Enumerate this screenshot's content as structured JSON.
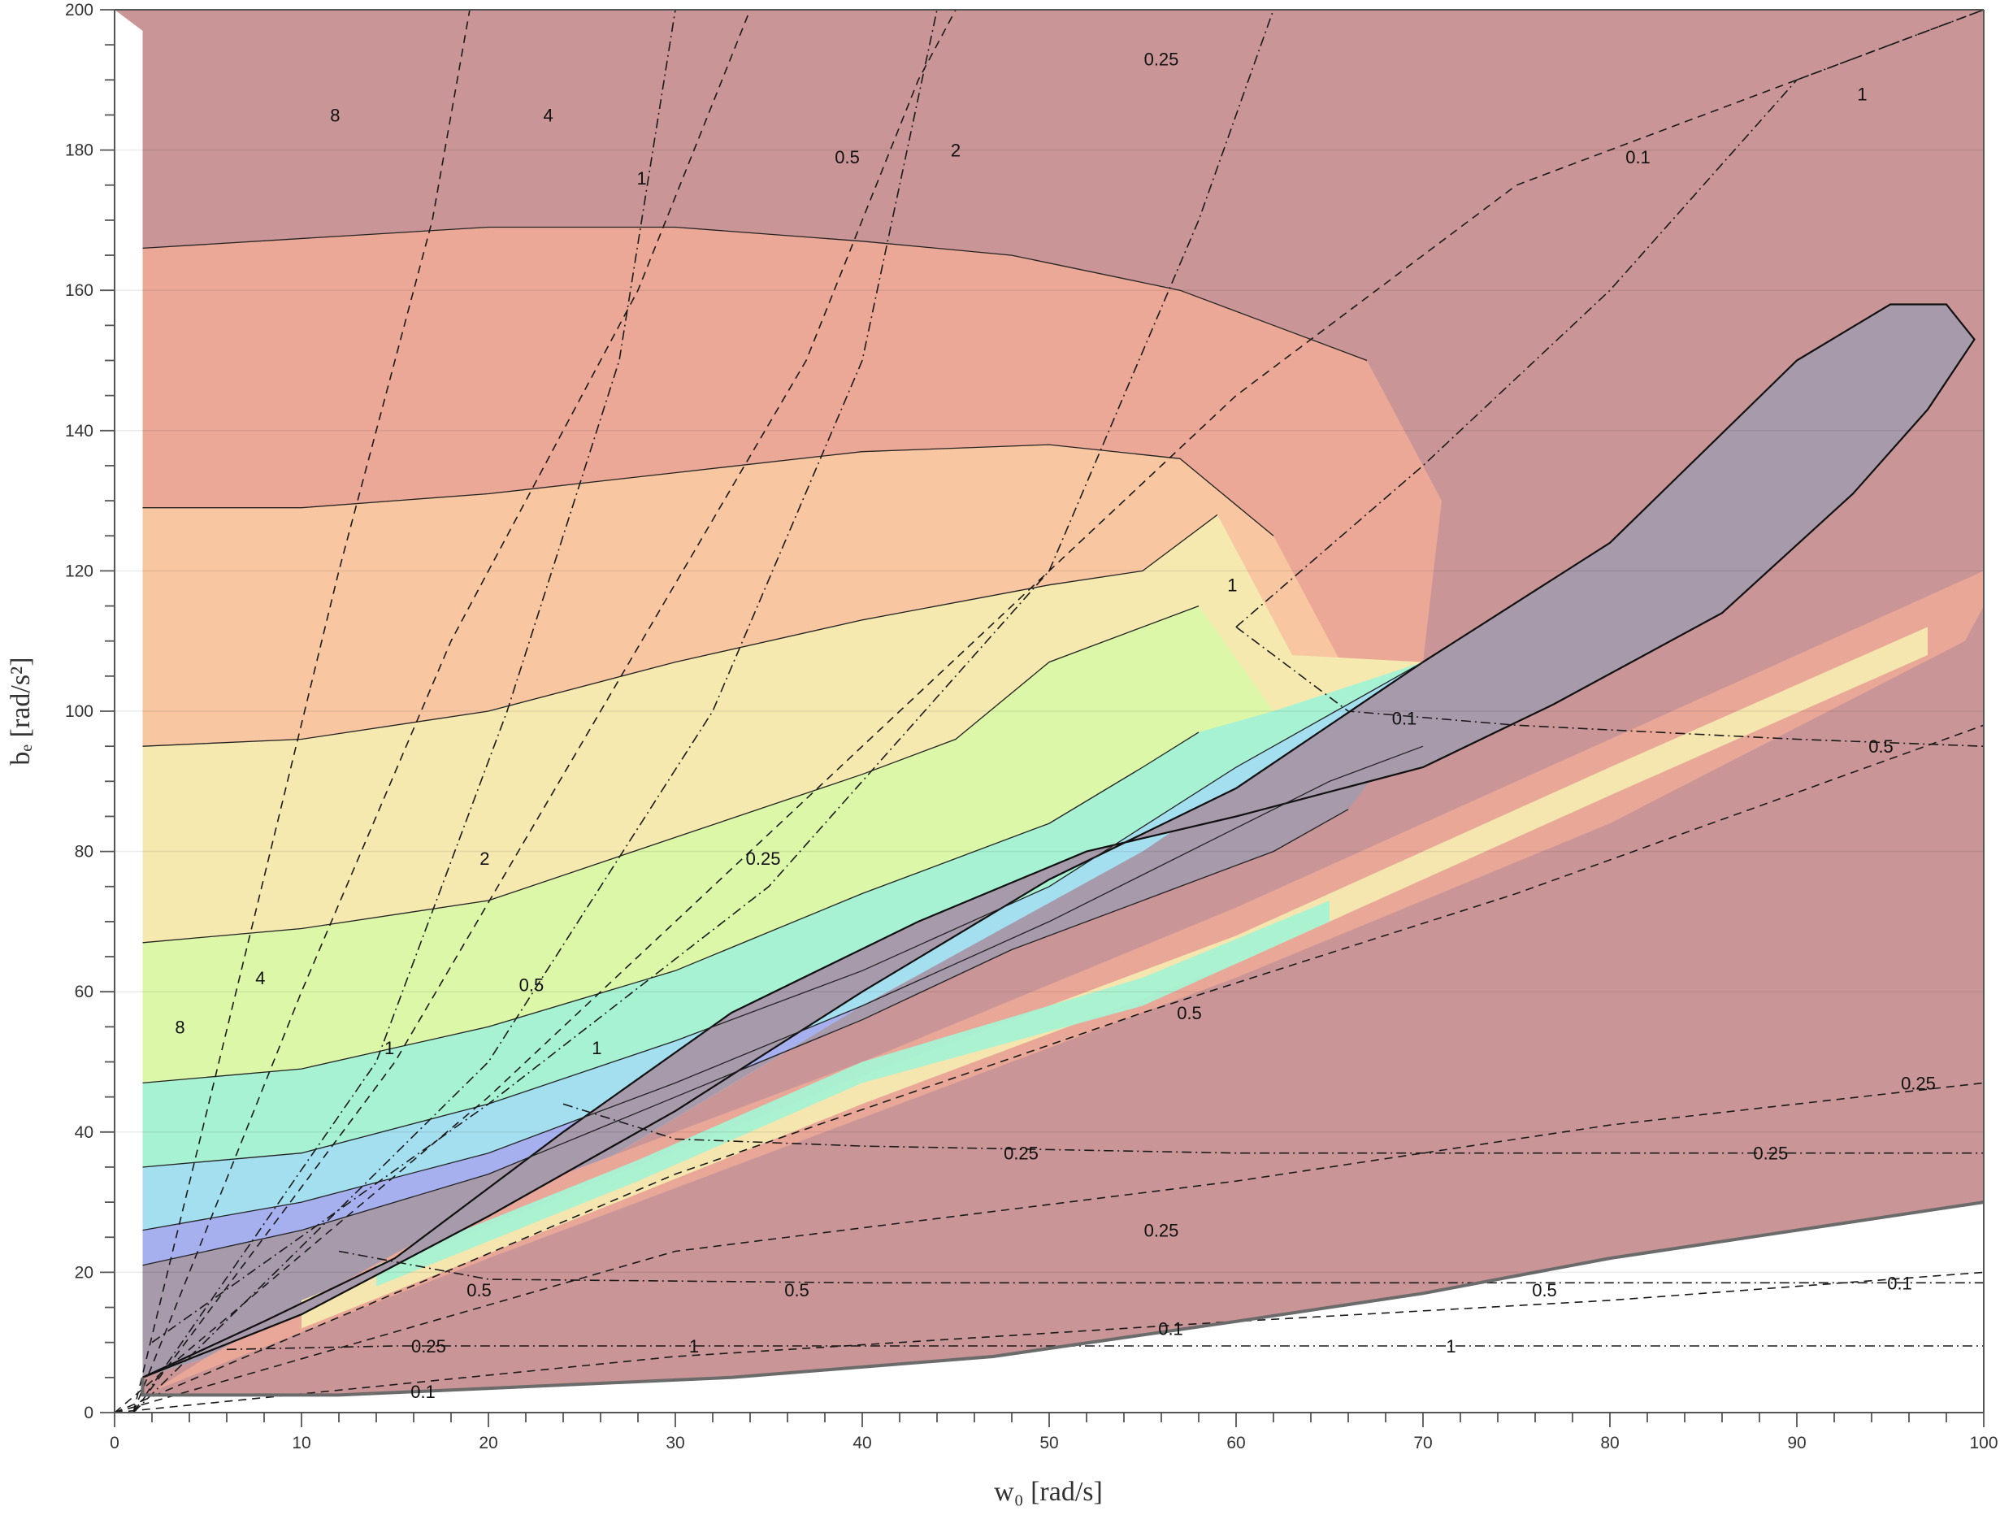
{
  "chart_data": {
    "type": "contour",
    "title": "",
    "xlabel": "w₀ [rad/s]",
    "ylabel": "bₑ [rad/s²]",
    "xlim": [
      0,
      100
    ],
    "ylim": [
      0,
      200
    ],
    "x_ticks": [
      "0",
      "10",
      "20",
      "30",
      "40",
      "50",
      "60",
      "70",
      "80",
      "90",
      "100"
    ],
    "y_ticks": [
      "0",
      "20",
      "40",
      "60",
      "80",
      "100",
      "120",
      "140",
      "160",
      "180",
      "200"
    ],
    "grid": true,
    "colors": {
      "background_region": "#c99596",
      "band_0": "#eba897",
      "band_1": "#f8c6a1",
      "band_2": "#f5e9b0",
      "band_3": "#dcf7a8",
      "band_4": "#a6f2d2",
      "band_5": "#a4dff0",
      "band_6": "#a7b0ee",
      "band_7": "#a69aab",
      "boundary": "#6b6b6b"
    },
    "filled_bands": [
      {
        "upper_boundary": [
          [
            1.5,
            166
          ],
          [
            20,
            169
          ],
          [
            30,
            169
          ],
          [
            40,
            167
          ],
          [
            48,
            165
          ],
          [
            57,
            160
          ],
          [
            62,
            155
          ],
          [
            67,
            150
          ]
        ]
      },
      {
        "upper_boundary": [
          [
            1.5,
            129
          ],
          [
            10,
            129
          ],
          [
            20,
            131
          ],
          [
            30,
            134
          ],
          [
            40,
            137
          ],
          [
            50,
            138
          ],
          [
            57,
            136
          ],
          [
            62,
            125
          ]
        ]
      },
      {
        "upper_boundary": [
          [
            1.5,
            95
          ],
          [
            10,
            96
          ],
          [
            20,
            100
          ],
          [
            30,
            107
          ],
          [
            40,
            113
          ],
          [
            50,
            118
          ],
          [
            55,
            120
          ],
          [
            59,
            128
          ]
        ]
      },
      {
        "upper_boundary": [
          [
            1.5,
            67
          ],
          [
            10,
            69
          ],
          [
            20,
            73
          ],
          [
            30,
            82
          ],
          [
            40,
            91
          ],
          [
            45,
            96
          ],
          [
            50,
            107
          ],
          [
            58,
            115
          ]
        ]
      },
      {
        "upper_boundary": [
          [
            1.5,
            47
          ],
          [
            10,
            49
          ],
          [
            20,
            55
          ],
          [
            30,
            63
          ],
          [
            40,
            74
          ],
          [
            50,
            84
          ],
          [
            55,
            92
          ],
          [
            58,
            97
          ]
        ]
      },
      {
        "upper_boundary": [
          [
            1.5,
            35
          ],
          [
            10,
            37
          ],
          [
            20,
            44
          ],
          [
            30,
            53
          ],
          [
            40,
            63
          ],
          [
            50,
            75
          ],
          [
            60,
            92
          ],
          [
            70,
            107
          ]
        ]
      },
      {
        "upper_boundary": [
          [
            1.5,
            26
          ],
          [
            10,
            30
          ],
          [
            20,
            37
          ],
          [
            30,
            47
          ],
          [
            40,
            58
          ],
          [
            50,
            70
          ],
          [
            65,
            90
          ],
          [
            70,
            95
          ]
        ]
      },
      {
        "upper_boundary": [
          [
            1.5,
            21
          ],
          [
            10,
            26
          ],
          [
            20,
            34
          ],
          [
            30,
            45
          ],
          [
            40,
            56
          ],
          [
            48,
            66
          ],
          [
            56,
            74
          ],
          [
            62,
            80
          ],
          [
            66,
            86
          ]
        ]
      }
    ],
    "dark_core_region": [
      [
        1.5,
        5
      ],
      [
        10,
        14
      ],
      [
        20,
        28
      ],
      [
        30,
        43
      ],
      [
        40,
        60
      ],
      [
        50,
        76
      ],
      [
        60,
        89
      ],
      [
        70,
        107
      ],
      [
        80,
        124
      ],
      [
        90,
        150
      ],
      [
        95,
        158
      ],
      [
        98,
        158
      ],
      [
        99.5,
        153
      ],
      [
        97,
        143
      ],
      [
        93,
        131
      ],
      [
        86,
        114
      ],
      [
        77,
        101
      ],
      [
        70,
        92
      ],
      [
        60,
        85
      ],
      [
        52,
        80
      ],
      [
        43,
        70
      ],
      [
        33,
        57
      ],
      [
        24,
        40
      ],
      [
        15,
        22
      ],
      [
        8,
        13
      ],
      [
        1.5,
        5
      ]
    ],
    "contour_sets": [
      {
        "style": "dashed",
        "lines": [
          {
            "label": "8",
            "points": [
              [
                1,
                0
              ],
              [
                6.5,
                60
              ],
              [
                12,
                120
              ],
              [
                17,
                170
              ],
              [
                19,
                200
              ]
            ]
          },
          {
            "label": "4",
            "points": [
              [
                1,
                0
              ],
              [
                10,
                60
              ],
              [
                18,
                110
              ],
              [
                28,
                160
              ],
              [
                34,
                200
              ]
            ]
          },
          {
            "label": "2",
            "points": [
              [
                1,
                0
              ],
              [
                15,
                50
              ],
              [
                26,
                100
              ],
              [
                37,
                150
              ],
              [
                43,
                190
              ],
              [
                45,
                200
              ]
            ]
          },
          {
            "label": "1",
            "points": [
              [
                0,
                0
              ],
              [
                20,
                45
              ],
              [
                40,
                95
              ],
              [
                60,
                145
              ],
              [
                75,
                175
              ],
              [
                100,
                200
              ]
            ]
          },
          {
            "label": "0.5",
            "points": [
              [
                0,
                0
              ],
              [
                30,
                34
              ],
              [
                55,
                57
              ],
              [
                75,
                74
              ],
              [
                100,
                98
              ]
            ]
          },
          {
            "label": "0.25",
            "points": [
              [
                0,
                0
              ],
              [
                30,
                23
              ],
              [
                60,
                33
              ],
              [
                80,
                41
              ],
              [
                100,
                47
              ]
            ]
          },
          {
            "label": "0.1",
            "points": [
              [
                0,
                0
              ],
              [
                30,
                8
              ],
              [
                60,
                13
              ],
              [
                80,
                16
              ],
              [
                100,
                20
              ]
            ]
          }
        ]
      },
      {
        "style": "dash-dot",
        "lines": [
          {
            "label": "1",
            "points": [
              [
                1,
                0
              ],
              [
                14,
                50
              ],
              [
                21,
                100
              ],
              [
                27,
                150
              ],
              [
                30,
                200
              ]
            ]
          },
          {
            "label": "0.5",
            "points": [
              [
                1,
                0
              ],
              [
                20,
                50
              ],
              [
                32,
                100
              ],
              [
                40,
                150
              ],
              [
                44,
                200
              ]
            ]
          },
          {
            "label": "0.25",
            "points": [
              [
                2,
                10
              ],
              [
                20,
                44
              ],
              [
                35,
                75
              ],
              [
                50,
                120
              ],
              [
                58,
                170
              ],
              [
                62,
                200
              ]
            ]
          },
          {
            "label": "0.1",
            "points": [
              [
                60,
                112
              ],
              [
                70,
                135
              ],
              [
                80,
                160
              ],
              [
                90,
                190
              ],
              [
                100,
                200
              ]
            ]
          },
          {
            "label": "0.1",
            "points": [
              [
                60,
                112
              ],
              [
                66,
                100
              ],
              [
                75,
                98
              ],
              [
                90,
                96
              ],
              [
                100,
                95
              ]
            ]
          },
          {
            "label": "0.25",
            "points": [
              [
                24,
                44
              ],
              [
                30,
                39
              ],
              [
                40,
                38
              ],
              [
                60,
                37
              ],
              [
                100,
                37
              ]
            ]
          },
          {
            "label": "0.5",
            "points": [
              [
                12,
                23
              ],
              [
                20,
                19
              ],
              [
                40,
                18.5
              ],
              [
                60,
                18.5
              ],
              [
                100,
                18.5
              ]
            ]
          },
          {
            "label": "1",
            "points": [
              [
                6,
                9
              ],
              [
                15,
                9.5
              ],
              [
                40,
                9.5
              ],
              [
                60,
                9.5
              ],
              [
                100,
                9.5
              ]
            ]
          }
        ]
      }
    ],
    "contour_labels": [
      {
        "text": "8",
        "x": 11.8,
        "y": 185
      },
      {
        "text": "4",
        "x": 23.2,
        "y": 185
      },
      {
        "text": "1",
        "x": 28.2,
        "y": 176
      },
      {
        "text": "0.5",
        "x": 39.2,
        "y": 179
      },
      {
        "text": "2",
        "x": 45,
        "y": 180
      },
      {
        "text": "0.25",
        "x": 56,
        "y": 193
      },
      {
        "text": "0.1",
        "x": 81.5,
        "y": 179
      },
      {
        "text": "1",
        "x": 93.5,
        "y": 188
      },
      {
        "text": "8",
        "x": 3.5,
        "y": 55
      },
      {
        "text": "4",
        "x": 7.8,
        "y": 62
      },
      {
        "text": "2",
        "x": 19.8,
        "y": 79
      },
      {
        "text": "1",
        "x": 14.7,
        "y": 52
      },
      {
        "text": "0.5",
        "x": 22.3,
        "y": 61
      },
      {
        "text": "0.25",
        "x": 34.7,
        "y": 79
      },
      {
        "text": "1",
        "x": 25.8,
        "y": 52
      },
      {
        "text": "1",
        "x": 59.8,
        "y": 118
      },
      {
        "text": "0.1",
        "x": 69,
        "y": 99
      },
      {
        "text": "0.5",
        "x": 94.5,
        "y": 95
      },
      {
        "text": "0.5",
        "x": 57.5,
        "y": 57
      },
      {
        "text": "0.25",
        "x": 96.5,
        "y": 47
      },
      {
        "text": "0.25",
        "x": 48.5,
        "y": 37
      },
      {
        "text": "0.25",
        "x": 88.6,
        "y": 37
      },
      {
        "text": "0.25",
        "x": 56,
        "y": 26
      },
      {
        "text": "0.5",
        "x": 19.5,
        "y": 17.5
      },
      {
        "text": "0.5",
        "x": 36.5,
        "y": 17.5
      },
      {
        "text": "0.5",
        "x": 76.5,
        "y": 17.5
      },
      {
        "text": "0.1",
        "x": 95.5,
        "y": 18.5
      },
      {
        "text": "0.25",
        "x": 16.8,
        "y": 9.5
      },
      {
        "text": "1",
        "x": 31,
        "y": 9.5
      },
      {
        "text": "1",
        "x": 71.5,
        "y": 9.5
      },
      {
        "text": "0.1",
        "x": 56.5,
        "y": 12
      },
      {
        "text": "0.1",
        "x": 16.5,
        "y": 3
      }
    ],
    "domain_boundary": [
      [
        1.5,
        5
      ],
      [
        1.5,
        197
      ],
      [
        0,
        200
      ],
      [
        100,
        200
      ],
      [
        100,
        30
      ],
      [
        90,
        26
      ],
      [
        80,
        22
      ],
      [
        70,
        17
      ],
      [
        60,
        13
      ],
      [
        47,
        8
      ],
      [
        33,
        5
      ],
      [
        12,
        2.5
      ],
      [
        1.5,
        2.5
      ]
    ]
  }
}
